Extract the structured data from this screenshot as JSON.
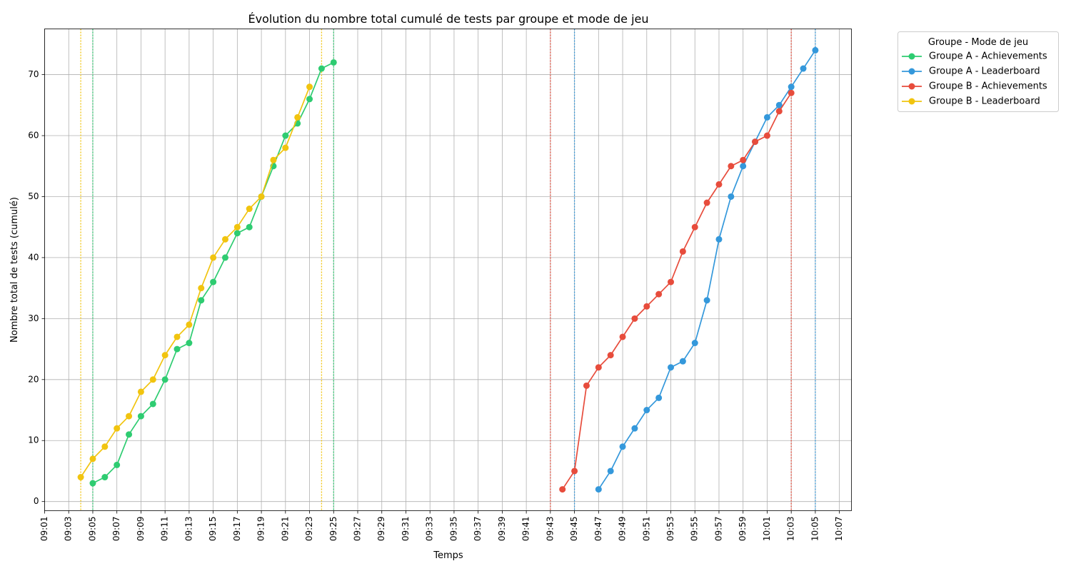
{
  "chart_data": {
    "type": "line",
    "title": "Évolution du nombre total cumulé de tests par groupe et mode de jeu",
    "xlabel": "Temps",
    "ylabel": "Nombre total de tests (cumulé)",
    "xlim": [
      "09:01",
      "10:08"
    ],
    "ylim": [
      -1.5,
      77.5
    ],
    "y_ticks": [
      0,
      10,
      20,
      30,
      40,
      50,
      60,
      70
    ],
    "x_ticks": [
      "09:01",
      "09:03",
      "09:05",
      "09:07",
      "09:09",
      "09:11",
      "09:13",
      "09:15",
      "09:17",
      "09:19",
      "09:21",
      "09:23",
      "09:25",
      "09:27",
      "09:29",
      "09:31",
      "09:33",
      "09:35",
      "09:37",
      "09:39",
      "09:41",
      "09:43",
      "09:45",
      "09:47",
      "09:49",
      "09:51",
      "09:53",
      "09:55",
      "09:57",
      "09:59",
      "10:01",
      "10:03",
      "10:05",
      "10:07"
    ],
    "grid": true,
    "legend": {
      "title": "Groupe - Mode de jeu",
      "placement": "outside-top-right"
    },
    "series": [
      {
        "name": "Groupe A - Achievements",
        "color": "#2ecc71",
        "points": [
          [
            "09:05",
            3
          ],
          [
            "09:06",
            4
          ],
          [
            "09:07",
            6
          ],
          [
            "09:08",
            11
          ],
          [
            "09:09",
            14
          ],
          [
            "09:10",
            16
          ],
          [
            "09:11",
            20
          ],
          [
            "09:12",
            25
          ],
          [
            "09:13",
            26
          ],
          [
            "09:14",
            33
          ],
          [
            "09:15",
            36
          ],
          [
            "09:16",
            40
          ],
          [
            "09:17",
            44
          ],
          [
            "09:18",
            45
          ],
          [
            "09:19",
            50
          ],
          [
            "09:20",
            55
          ],
          [
            "09:21",
            60
          ],
          [
            "09:22",
            62
          ],
          [
            "09:23",
            66
          ],
          [
            "09:24",
            71
          ],
          [
            "09:25",
            72
          ]
        ],
        "vlines": [
          "09:05",
          "09:25"
        ]
      },
      {
        "name": "Groupe A - Leaderboard",
        "color": "#3498db",
        "points": [
          [
            "09:47",
            2
          ],
          [
            "09:48",
            5
          ],
          [
            "09:49",
            9
          ],
          [
            "09:50",
            12
          ],
          [
            "09:51",
            15
          ],
          [
            "09:52",
            17
          ],
          [
            "09:53",
            22
          ],
          [
            "09:54",
            23
          ],
          [
            "09:55",
            26
          ],
          [
            "09:56",
            33
          ],
          [
            "09:57",
            43
          ],
          [
            "09:58",
            50
          ],
          [
            "09:59",
            55
          ],
          [
            "10:00",
            59
          ],
          [
            "10:01",
            63
          ],
          [
            "10:02",
            65
          ],
          [
            "10:03",
            68
          ],
          [
            "10:04",
            71
          ],
          [
            "10:05",
            74
          ]
        ],
        "vlines": [
          "09:45",
          "10:05"
        ]
      },
      {
        "name": "Groupe B - Achievements",
        "color": "#e74c3c",
        "points": [
          [
            "09:44",
            2
          ],
          [
            "09:45",
            5
          ],
          [
            "09:46",
            19
          ],
          [
            "09:47",
            22
          ],
          [
            "09:48",
            24
          ],
          [
            "09:49",
            27
          ],
          [
            "09:50",
            30
          ],
          [
            "09:51",
            32
          ],
          [
            "09:52",
            34
          ],
          [
            "09:53",
            36
          ],
          [
            "09:54",
            41
          ],
          [
            "09:55",
            45
          ],
          [
            "09:56",
            49
          ],
          [
            "09:57",
            52
          ],
          [
            "09:58",
            55
          ],
          [
            "09:59",
            56
          ],
          [
            "10:00",
            59
          ],
          [
            "10:01",
            60
          ],
          [
            "10:02",
            64
          ],
          [
            "10:03",
            67
          ]
        ],
        "vlines": [
          "09:43",
          "10:03"
        ]
      },
      {
        "name": "Groupe B - Leaderboard",
        "color": "#f1c40f",
        "points": [
          [
            "09:04",
            4
          ],
          [
            "09:05",
            7
          ],
          [
            "09:06",
            9
          ],
          [
            "09:07",
            12
          ],
          [
            "09:08",
            14
          ],
          [
            "09:09",
            18
          ],
          [
            "09:10",
            20
          ],
          [
            "09:11",
            24
          ],
          [
            "09:12",
            27
          ],
          [
            "09:13",
            29
          ],
          [
            "09:14",
            35
          ],
          [
            "09:15",
            40
          ],
          [
            "09:16",
            43
          ],
          [
            "09:17",
            45
          ],
          [
            "09:18",
            48
          ],
          [
            "09:19",
            50
          ],
          [
            "09:20",
            56
          ],
          [
            "09:21",
            58
          ],
          [
            "09:22",
            63
          ],
          [
            "09:23",
            68
          ]
        ],
        "vlines": [
          "09:04",
          "09:24"
        ]
      }
    ]
  }
}
